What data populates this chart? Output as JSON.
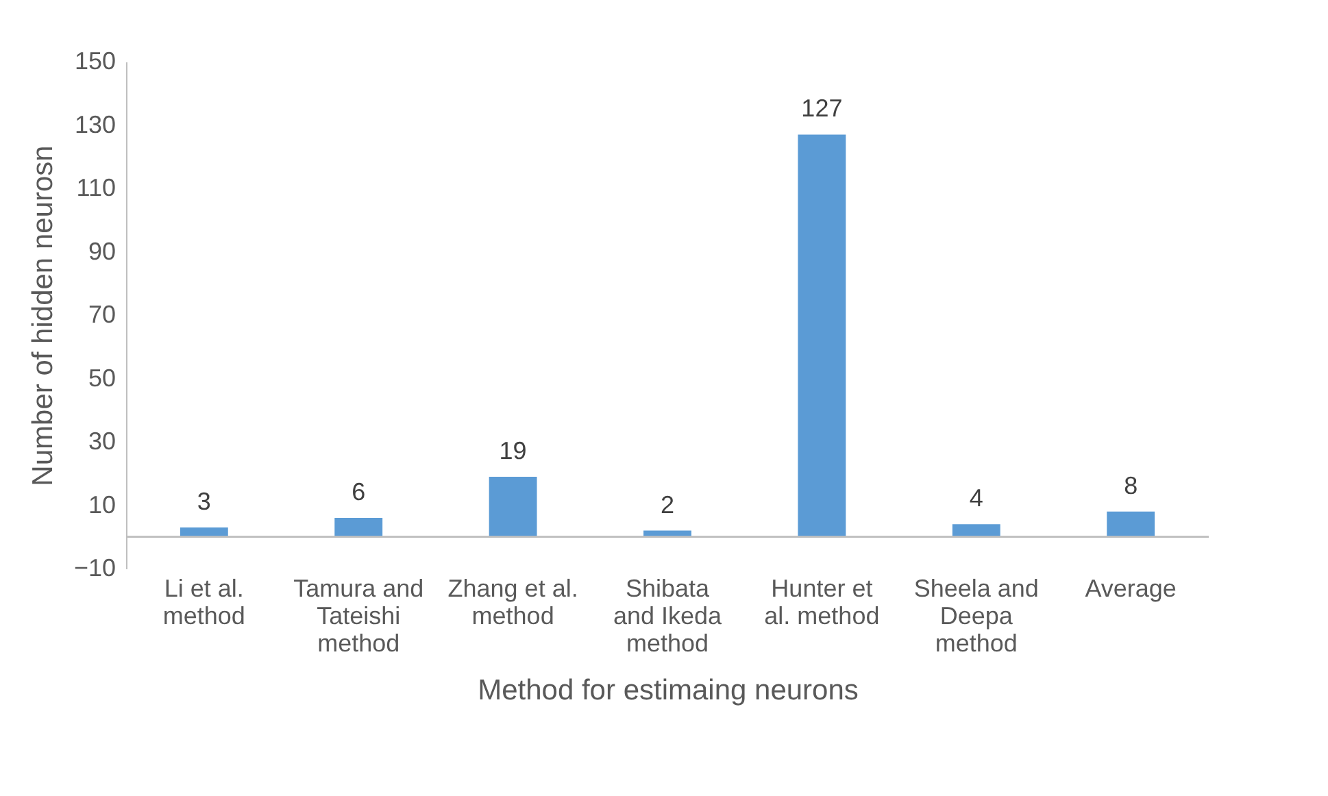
{
  "chart_data": {
    "type": "bar",
    "categories": [
      "Li et al. method",
      "Tamura and Tateishi method",
      "Zhang et al. method",
      "Shibata and Ikeda method",
      "Hunter et al. method",
      "Sheela and Deepa method",
      "Average"
    ],
    "values": [
      3,
      6,
      19,
      2,
      127,
      4,
      8
    ],
    "color": "#5b9bd5",
    "xlabel": "Method for estimaing neurons",
    "ylabel": "Number of hidden neurosn",
    "ylim": [
      -10,
      150
    ],
    "yticks": [
      -10,
      10,
      30,
      50,
      70,
      90,
      110,
      130,
      150
    ],
    "data_labels": true
  }
}
